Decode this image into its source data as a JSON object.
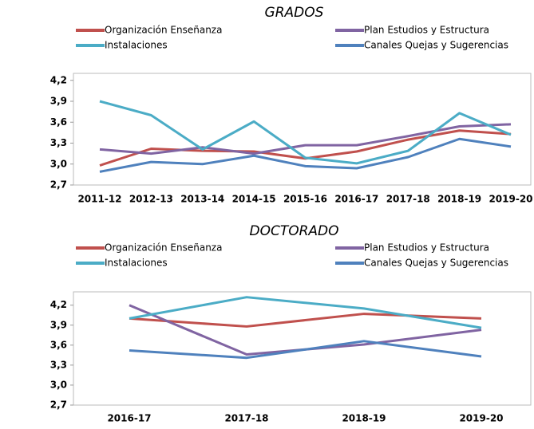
{
  "chart_data": [
    {
      "type": "line",
      "title": "GRADOS",
      "categories": [
        "2011-12",
        "2012-13",
        "2013-14",
        "2014-15",
        "2015-16",
        "2016-17",
        "2017-18",
        "2018-19",
        "2019-20"
      ],
      "series": [
        {
          "name": "Organización Enseñanza",
          "color": "#c0504d",
          "values": [
            2.98,
            3.22,
            3.19,
            3.18,
            3.08,
            3.18,
            3.35,
            3.48,
            3.43
          ]
        },
        {
          "name": "Plan Estudios y Estructura",
          "color": "#8064a2",
          "values": [
            3.21,
            3.15,
            3.24,
            3.15,
            3.27,
            3.27,
            3.4,
            3.54,
            3.57
          ]
        },
        {
          "name": "Instalaciones",
          "color": "#4bacc6",
          "values": [
            3.9,
            3.7,
            3.21,
            3.61,
            3.09,
            3.01,
            3.19,
            3.73,
            3.42
          ]
        },
        {
          "name": "Canales Quejas y Sugerencias",
          "color": "#4f81bd",
          "values": [
            2.89,
            3.03,
            3.0,
            3.12,
            2.97,
            2.94,
            3.1,
            3.36,
            3.25
          ]
        }
      ],
      "ylim": [
        2.7,
        4.3
      ],
      "yticks": [
        {
          "value": 2.7,
          "label": "2,7"
        },
        {
          "value": 3.0,
          "label": "3,0"
        },
        {
          "value": 3.3,
          "label": "3,3"
        },
        {
          "value": 3.6,
          "label": "3,6"
        },
        {
          "value": 3.9,
          "label": "3,9"
        },
        {
          "value": 4.2,
          "label": "4,2"
        }
      ]
    },
    {
      "type": "line",
      "title": "DOCTORADO",
      "categories": [
        "2016-17",
        "2017-18",
        "2018-19",
        "2019-20"
      ],
      "series": [
        {
          "name": "Organización Enseñanza",
          "color": "#c0504d",
          "values": [
            4.0,
            3.88,
            4.07,
            4.0
          ]
        },
        {
          "name": "Plan Estudios y Estructura",
          "color": "#8064a2",
          "values": [
            4.2,
            3.46,
            3.61,
            3.83
          ]
        },
        {
          "name": "Instalaciones",
          "color": "#4bacc6",
          "values": [
            4.0,
            4.32,
            4.15,
            3.86
          ]
        },
        {
          "name": "Canales Quejas y Sugerencias",
          "color": "#4f81bd",
          "values": [
            3.52,
            3.41,
            3.66,
            3.43
          ]
        }
      ],
      "ylim": [
        2.7,
        4.4
      ],
      "yticks": [
        {
          "value": 2.7,
          "label": "2,7"
        },
        {
          "value": 3.0,
          "label": "3,0"
        },
        {
          "value": 3.3,
          "label": "3,3"
        },
        {
          "value": 3.6,
          "label": "3,6"
        },
        {
          "value": 3.9,
          "label": "3,9"
        },
        {
          "value": 4.2,
          "label": "4,2"
        }
      ]
    }
  ]
}
